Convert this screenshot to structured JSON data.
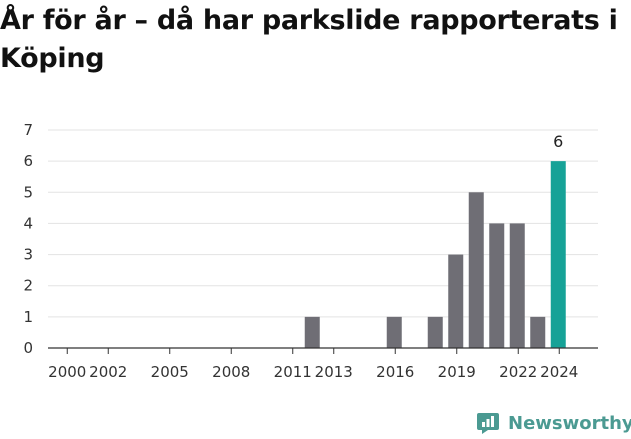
{
  "title": "År för år – då har parkslide rapporterats i Köping",
  "brand": {
    "name": "Newsworthy",
    "icon": "newsworthy-logo-icon",
    "color": "#4b9a92"
  },
  "colors": {
    "bar": "#6f6e75",
    "highlight": "#16a297",
    "grid": "#e3e3e3",
    "axis": "#333333"
  },
  "chart_data": {
    "type": "bar",
    "title": "År för år – då har parkslide rapporterats i Köping",
    "xlabel": "",
    "ylabel": "",
    "ylim": [
      0,
      7
    ],
    "yticks": [
      0,
      1,
      2,
      3,
      4,
      5,
      6,
      7
    ],
    "categories": [
      "2000",
      "2001",
      "2002",
      "2003",
      "2004",
      "2005",
      "2006",
      "2007",
      "2008",
      "2009",
      "2010",
      "2011",
      "2012",
      "2013",
      "2014",
      "2015",
      "2016",
      "2017",
      "2018",
      "2019",
      "2020",
      "2021",
      "2022",
      "2023",
      "2024"
    ],
    "values": [
      0,
      0,
      0,
      0,
      0,
      0,
      0,
      0,
      0,
      0,
      0,
      0,
      1,
      0,
      0,
      0,
      1,
      0,
      1,
      3,
      5,
      4,
      4,
      1,
      6
    ],
    "xtick_labels": [
      "2000",
      "2002",
      "2005",
      "2008",
      "2011",
      "2013",
      "2016",
      "2019",
      "2022",
      "2024"
    ],
    "highlight": {
      "category": "2024",
      "label": "6"
    },
    "grid": true,
    "legend": "none"
  }
}
